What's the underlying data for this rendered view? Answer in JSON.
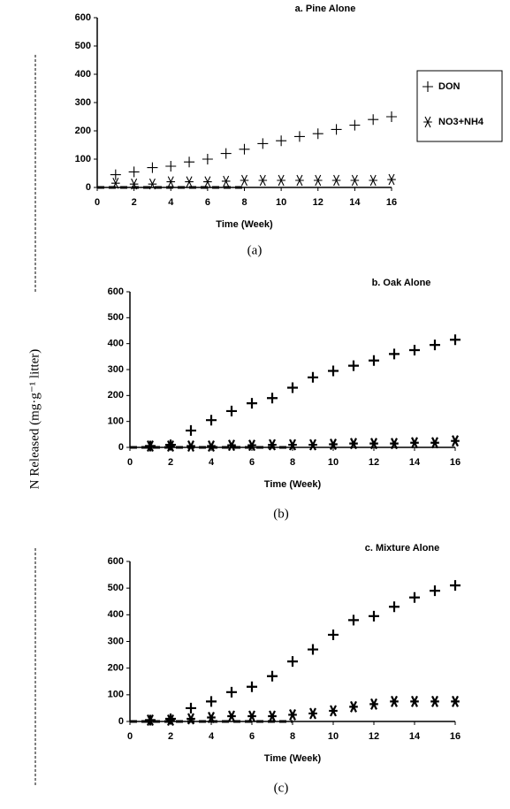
{
  "y_label": "N Released (mg·g⁻¹ litter)",
  "chart_data": [
    {
      "type": "scatter",
      "title": "a. Pine Alone",
      "xlabel": "Time (Week)",
      "caption": "(a)",
      "legend": true,
      "x": [
        1,
        2,
        3,
        4,
        5,
        6,
        7,
        8,
        9,
        10,
        11,
        12,
        13,
        14,
        15,
        16
      ],
      "series": [
        {
          "name": "DON",
          "marker": "plus",
          "color": "#000",
          "values": [
            45,
            55,
            70,
            75,
            90,
            100,
            120,
            135,
            155,
            165,
            180,
            190,
            205,
            220,
            240,
            250
          ]
        },
        {
          "name": "NO3+NH4",
          "marker": "star",
          "color": "#000",
          "values": [
            15,
            12,
            12,
            20,
            20,
            20,
            22,
            25,
            25,
            25,
            25,
            25,
            25,
            25,
            25,
            28
          ]
        }
      ],
      "xlim": [
        0,
        16
      ],
      "xticks": [
        0,
        2,
        4,
        6,
        8,
        10,
        12,
        14,
        16
      ],
      "ylim": [
        0,
        600
      ],
      "yticks": [
        0,
        100,
        200,
        300,
        400,
        500,
        600
      ]
    },
    {
      "type": "scatter",
      "title": "b. Oak Alone",
      "xlabel": "Time (Week)",
      "caption": "(b)",
      "legend": false,
      "x": [
        1,
        2,
        3,
        4,
        5,
        6,
        7,
        8,
        9,
        10,
        11,
        12,
        13,
        14,
        15,
        16
      ],
      "series": [
        {
          "marker": "plus",
          "color": "#000",
          "values": [
            5,
            10,
            65,
            105,
            140,
            170,
            190,
            230,
            270,
            295,
            315,
            335,
            360,
            375,
            395,
            415
          ]
        },
        {
          "marker": "star",
          "color": "#000",
          "values": [
            5,
            5,
            5,
            5,
            8,
            8,
            10,
            10,
            10,
            12,
            15,
            15,
            15,
            18,
            18,
            25
          ]
        }
      ],
      "xlim": [
        0,
        16
      ],
      "xticks": [
        0,
        2,
        4,
        6,
        8,
        10,
        12,
        14,
        16
      ],
      "ylim": [
        0,
        600
      ],
      "yticks": [
        0,
        100,
        200,
        300,
        400,
        500,
        600
      ]
    },
    {
      "type": "scatter",
      "title": "c. Mixture Alone",
      "xlabel": "Time (Week)",
      "caption": "(c)",
      "legend": false,
      "x": [
        1,
        2,
        3,
        4,
        5,
        6,
        7,
        8,
        9,
        10,
        11,
        12,
        13,
        14,
        15,
        16
      ],
      "series": [
        {
          "marker": "plus",
          "color": "#000",
          "values": [
            5,
            10,
            50,
            75,
            110,
            130,
            170,
            225,
            270,
            325,
            380,
            395,
            430,
            465,
            490,
            510
          ]
        },
        {
          "marker": "star",
          "color": "#000",
          "values": [
            5,
            5,
            10,
            15,
            20,
            20,
            20,
            25,
            30,
            40,
            55,
            65,
            75,
            75,
            75,
            75
          ]
        }
      ],
      "xlim": [
        0,
        16
      ],
      "xticks": [
        0,
        2,
        4,
        6,
        8,
        10,
        12,
        14,
        16
      ],
      "ylim": [
        0,
        600
      ],
      "yticks": [
        0,
        100,
        200,
        300,
        400,
        500,
        600
      ]
    }
  ]
}
